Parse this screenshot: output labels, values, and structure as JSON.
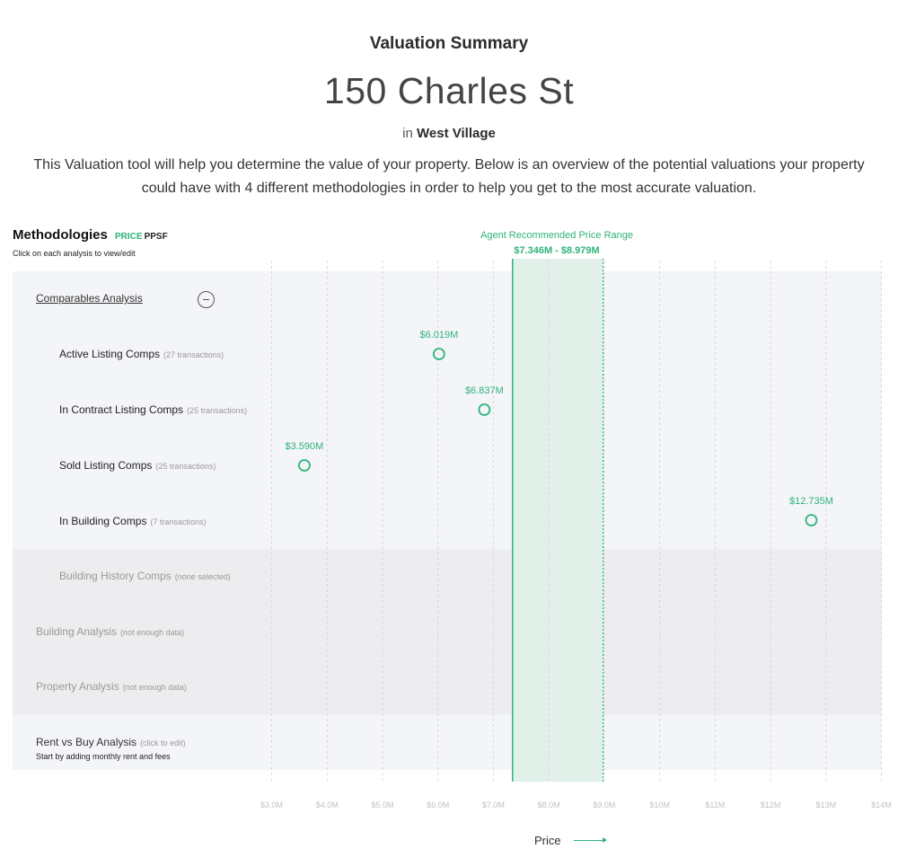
{
  "header": {
    "kicker": "Valuation Summary",
    "address": "150 Charles St",
    "location_prefix": "in",
    "neighborhood": "West Village",
    "description": "This Valuation tool will help you determine the value of your property. Below is an overview of the potential valuations your property could have with 4 different methodologies in order to help you get to the most accurate valuation."
  },
  "methodologies": {
    "title": "Methodologies",
    "toggle_price": "PRICE",
    "toggle_ppsf": "PPSF",
    "subtitle": "Click on each analysis to view/edit"
  },
  "rows": {
    "comparables": {
      "label": "Comparables Analysis"
    },
    "active": {
      "label": "Active Listing Comps",
      "note": "(27 transactions)"
    },
    "contract": {
      "label": "In Contract Listing Comps",
      "note": "(25 transactions)"
    },
    "sold": {
      "label": "Sold Listing Comps",
      "note": "(25 transactions)"
    },
    "inbuilding": {
      "label": "In Building Comps",
      "note": "(7 transactions)"
    },
    "history": {
      "label": "Building History Comps",
      "note": "(none selected)"
    },
    "building": {
      "label": "Building Analysis",
      "note": "(not enough data)"
    },
    "property": {
      "label": "Property Analysis",
      "note": "(not enough data)"
    },
    "rent": {
      "label": "Rent vs Buy Analysis",
      "note": "(click to edit)",
      "sub": "Start by adding monthly rent and fees"
    }
  },
  "colors": {
    "accent": "#2fb37a",
    "band": "#e1f1ea",
    "row_light": "#f4f5f8",
    "row_dark": "#ededf0"
  },
  "chart_data": {
    "type": "scatter",
    "xlabel": "Price",
    "xlim": [
      3.0,
      14.0
    ],
    "x_ticks": [
      {
        "value": 3,
        "label": "$3.0M"
      },
      {
        "value": 4,
        "label": "$4.0M"
      },
      {
        "value": 5,
        "label": "$5.0M"
      },
      {
        "value": 6,
        "label": "$6.0M"
      },
      {
        "value": 7,
        "label": "$7.0M"
      },
      {
        "value": 8,
        "label": "$8.0M"
      },
      {
        "value": 9,
        "label": "$9.0M"
      },
      {
        "value": 10,
        "label": "$10M"
      },
      {
        "value": 11,
        "label": "$11M"
      },
      {
        "value": 12,
        "label": "$12M"
      },
      {
        "value": 13,
        "label": "$13M"
      },
      {
        "value": 14,
        "label": "$14M"
      }
    ],
    "points": [
      {
        "row": "Active Listing Comps",
        "value": 6.019,
        "label": "$6.019M"
      },
      {
        "row": "In Contract Listing Comps",
        "value": 6.837,
        "label": "$6.837M"
      },
      {
        "row": "Sold Listing Comps",
        "value": 3.59,
        "label": "$3.590M"
      },
      {
        "row": "In Building Comps",
        "value": 12.735,
        "label": "$12.735M"
      }
    ],
    "range": {
      "title": "Agent Recommended Price Range",
      "low": 7.346,
      "high": 8.979,
      "label": "$7.346M - $8.979M"
    }
  }
}
